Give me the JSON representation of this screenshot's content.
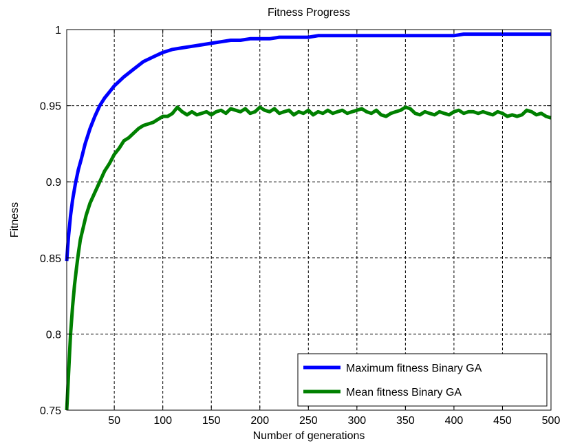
{
  "chart_data": {
    "type": "line",
    "title": "Fitness Progress",
    "xlabel": "Number of generations",
    "ylabel": "Fitness",
    "xlim": [
      1,
      500
    ],
    "ylim": [
      0.75,
      1.0
    ],
    "xticks": [
      50,
      100,
      150,
      200,
      250,
      300,
      350,
      400,
      450,
      500
    ],
    "xtick_labels": [
      "50",
      "100",
      "150",
      "200",
      "250",
      "300",
      "350",
      "400",
      "450",
      "500"
    ],
    "yticks": [
      0.75,
      0.8,
      0.85,
      0.9,
      0.95,
      1.0
    ],
    "ytick_labels": [
      "0.75",
      "0.8",
      "0.85",
      "0.9",
      "0.95",
      "1"
    ],
    "grid": true,
    "grid_style": "dashed",
    "legend_position": "bottom-right",
    "series": [
      {
        "name": "Maximum fitness Binary GA",
        "color": "#0000ff",
        "x": [
          1,
          2,
          3,
          5,
          7,
          10,
          13,
          16,
          20,
          25,
          30,
          35,
          40,
          45,
          50,
          55,
          60,
          70,
          80,
          90,
          100,
          110,
          120,
          130,
          140,
          150,
          160,
          170,
          180,
          190,
          200,
          210,
          220,
          230,
          240,
          250,
          260,
          270,
          280,
          290,
          300,
          310,
          320,
          330,
          340,
          350,
          360,
          370,
          380,
          390,
          400,
          410,
          420,
          430,
          440,
          450,
          460,
          470,
          480,
          490,
          500
        ],
        "values": [
          0.848,
          0.857,
          0.865,
          0.878,
          0.888,
          0.899,
          0.908,
          0.915,
          0.925,
          0.935,
          0.943,
          0.95,
          0.955,
          0.959,
          0.963,
          0.966,
          0.969,
          0.974,
          0.979,
          0.982,
          0.985,
          0.987,
          0.988,
          0.989,
          0.99,
          0.991,
          0.992,
          0.993,
          0.993,
          0.994,
          0.994,
          0.994,
          0.995,
          0.995,
          0.995,
          0.995,
          0.996,
          0.996,
          0.996,
          0.996,
          0.996,
          0.996,
          0.996,
          0.996,
          0.996,
          0.996,
          0.996,
          0.996,
          0.996,
          0.996,
          0.996,
          0.997,
          0.997,
          0.997,
          0.997,
          0.997,
          0.997,
          0.997,
          0.997,
          0.997,
          0.997
        ]
      },
      {
        "name": "Mean fitness Binary GA",
        "color": "#008000",
        "x": [
          1,
          2,
          3,
          4,
          5,
          7,
          9,
          11,
          13,
          15,
          18,
          21,
          25,
          30,
          35,
          40,
          45,
          50,
          55,
          60,
          65,
          70,
          75,
          80,
          85,
          90,
          95,
          100,
          105,
          110,
          115,
          120,
          125,
          130,
          135,
          140,
          145,
          150,
          155,
          160,
          165,
          170,
          175,
          180,
          185,
          190,
          195,
          200,
          205,
          210,
          215,
          220,
          225,
          230,
          235,
          240,
          245,
          250,
          255,
          260,
          265,
          270,
          275,
          280,
          285,
          290,
          295,
          300,
          305,
          310,
          315,
          320,
          325,
          330,
          335,
          340,
          345,
          350,
          355,
          360,
          365,
          370,
          375,
          380,
          385,
          390,
          395,
          400,
          405,
          410,
          415,
          420,
          425,
          430,
          435,
          440,
          445,
          450,
          455,
          460,
          465,
          470,
          475,
          480,
          485,
          490,
          495,
          500
        ],
        "values": [
          0.75,
          0.762,
          0.775,
          0.788,
          0.8,
          0.818,
          0.832,
          0.843,
          0.853,
          0.862,
          0.87,
          0.878,
          0.886,
          0.893,
          0.9,
          0.907,
          0.912,
          0.918,
          0.922,
          0.927,
          0.929,
          0.932,
          0.935,
          0.937,
          0.938,
          0.939,
          0.941,
          0.943,
          0.943,
          0.945,
          0.949,
          0.946,
          0.944,
          0.946,
          0.944,
          0.945,
          0.946,
          0.944,
          0.946,
          0.947,
          0.945,
          0.948,
          0.947,
          0.946,
          0.948,
          0.945,
          0.946,
          0.949,
          0.947,
          0.946,
          0.948,
          0.945,
          0.946,
          0.947,
          0.944,
          0.946,
          0.945,
          0.947,
          0.944,
          0.946,
          0.945,
          0.947,
          0.945,
          0.946,
          0.947,
          0.945,
          0.946,
          0.947,
          0.948,
          0.946,
          0.945,
          0.947,
          0.944,
          0.943,
          0.945,
          0.946,
          0.947,
          0.949,
          0.948,
          0.945,
          0.944,
          0.946,
          0.945,
          0.944,
          0.946,
          0.945,
          0.944,
          0.946,
          0.947,
          0.945,
          0.946,
          0.946,
          0.945,
          0.946,
          0.945,
          0.944,
          0.946,
          0.945,
          0.943,
          0.944,
          0.943,
          0.944,
          0.947,
          0.946,
          0.944,
          0.945,
          0.943,
          0.942
        ]
      }
    ]
  }
}
